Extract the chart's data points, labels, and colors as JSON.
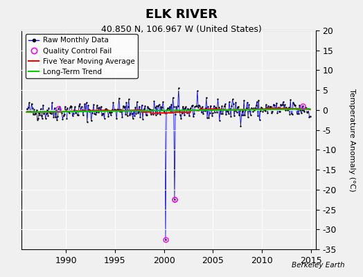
{
  "title": "ELK RIVER",
  "subtitle": "40.850 N, 106.967 W (United States)",
  "ylabel": "Temperature Anomaly (°C)",
  "xlabel_ticks": [
    1990,
    1995,
    2000,
    2005,
    2010,
    2015
  ],
  "ylim": [
    -35,
    20
  ],
  "yticks": [
    -35,
    -30,
    -25,
    -20,
    -15,
    -10,
    -5,
    0,
    5,
    10,
    15,
    20
  ],
  "xlim": [
    1985.5,
    2015.5
  ],
  "start_year": 1986,
  "end_year": 2014,
  "raw_color": "#0000ff",
  "moving_avg_color": "#ff0000",
  "trend_color": "#00cc00",
  "qc_fail_color": "#ff00ff",
  "background_color": "#f0f0f0",
  "grid_color": "#ffffff",
  "watermark": "Berkeley Earth",
  "seed": 42
}
